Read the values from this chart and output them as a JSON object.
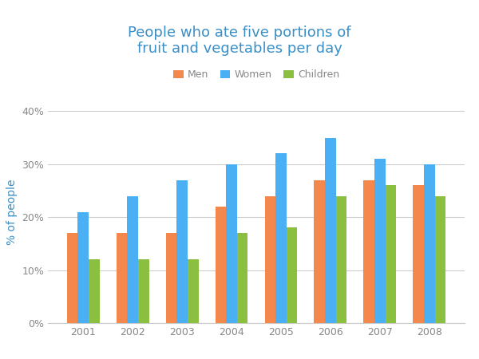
{
  "title": "People who ate five portions of\nfruit and vegetables per day",
  "ylabel": "% of people",
  "years": [
    2001,
    2002,
    2003,
    2004,
    2005,
    2006,
    2007,
    2008
  ],
  "men": [
    17,
    17,
    17,
    22,
    24,
    27,
    27,
    26
  ],
  "women": [
    21,
    24,
    27,
    30,
    32,
    35,
    31,
    30
  ],
  "children": [
    12,
    12,
    12,
    17,
    18,
    24,
    26,
    24
  ],
  "men_color": "#F4874B",
  "women_color": "#4BAFF4",
  "children_color": "#8ABF3F",
  "title_color": "#3A8FC7",
  "axis_label_color": "#3A8FC7",
  "tick_color": "#888888",
  "grid_color": "#CCCCCC",
  "background_color": "#FFFFFF",
  "ylim": [
    0,
    42
  ],
  "yticks": [
    0,
    10,
    20,
    30,
    40
  ],
  "ytick_labels": [
    "0%",
    "10%",
    "20%",
    "30%",
    "40%"
  ],
  "bar_width": 0.22,
  "legend_labels": [
    "Men",
    "Women",
    "Children"
  ],
  "title_fontsize": 13,
  "label_fontsize": 10,
  "tick_fontsize": 9,
  "legend_fontsize": 9
}
